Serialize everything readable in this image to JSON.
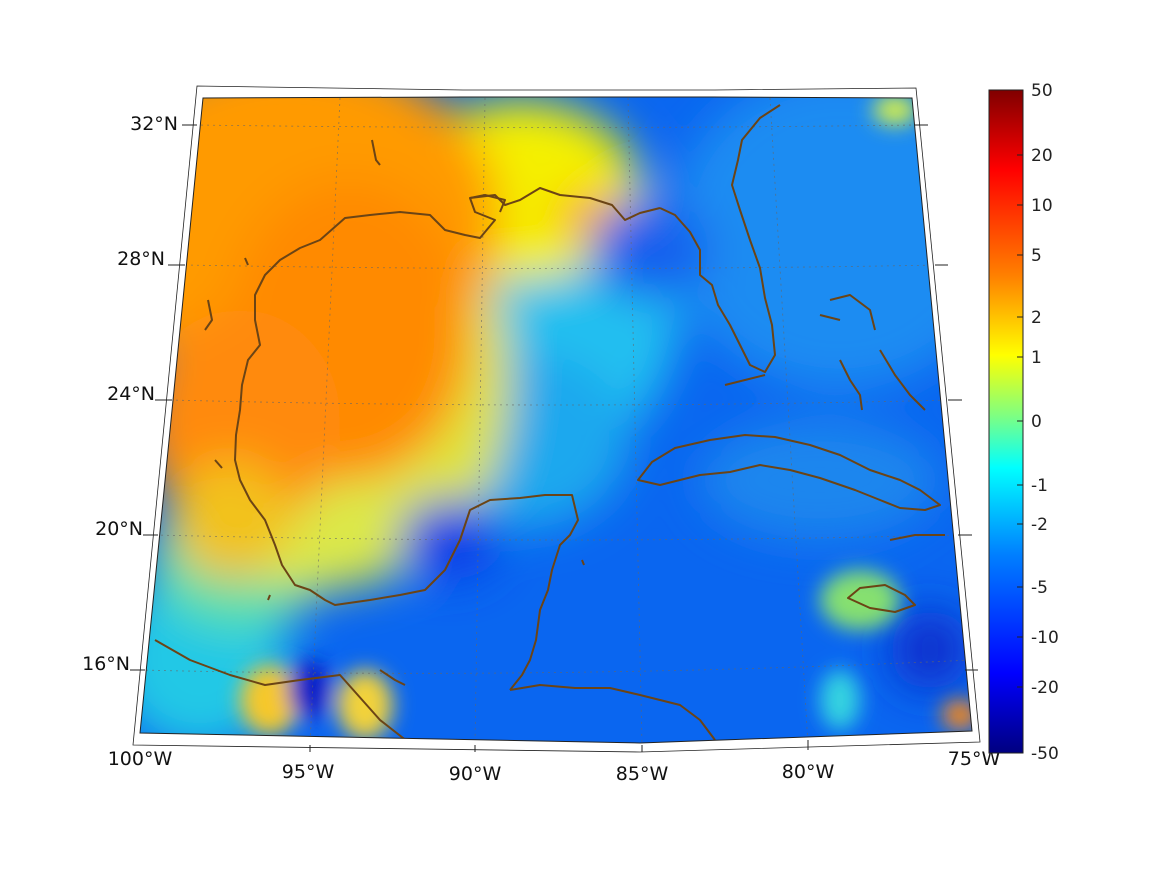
{
  "map": {
    "projection": "lambert-conformal",
    "lon_range": [
      -100,
      -75
    ],
    "lat_range": [
      14,
      33
    ],
    "lon_tick_labels": [
      "100°W",
      "95°W",
      "90°W",
      "85°W",
      "80°W",
      "75°W"
    ],
    "lat_tick_labels": [
      "16°N",
      "20°N",
      "24°N",
      "28°N",
      "32°N"
    ],
    "graticule": "dotted",
    "coastline_color": "#6b4415",
    "colormap": "jet",
    "field_pattern": {
      "positive_region": "northwestern Gulf of Mexico and Texas coast (orange)",
      "negative_region": "Caribbean Sea and western Atlantic (blue)",
      "hotspots": [
        "Gulf of Tehuantepec",
        "southeast corner",
        "northeast corner"
      ]
    }
  },
  "colorbar": {
    "ticks": [
      "50",
      "20",
      "10",
      "5",
      "2",
      "1",
      "0",
      "-1",
      "-2",
      "-5",
      "-10",
      "-20",
      "-50"
    ],
    "colors": [
      "#800000",
      "#ff0000",
      "#ff8000",
      "#ffff00",
      "#80ff80",
      "#00ffff",
      "#0080ff",
      "#0000ff",
      "#000080"
    ]
  }
}
